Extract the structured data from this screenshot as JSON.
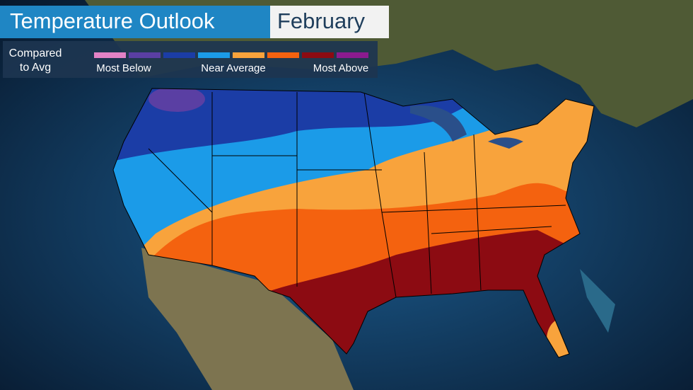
{
  "header": {
    "title": "Temperature Outlook",
    "month": "February"
  },
  "legend": {
    "caption": [
      "Compared",
      "to Avg"
    ],
    "colors": [
      "#e382c6",
      "#5a3fa3",
      "#1b3da6",
      "#1b9be8",
      "#f8a33c",
      "#f4620f",
      "#8c0b12",
      "#8b1b8f"
    ],
    "labels": [
      "Most Below",
      "Near Average",
      "Most Above"
    ]
  }
}
